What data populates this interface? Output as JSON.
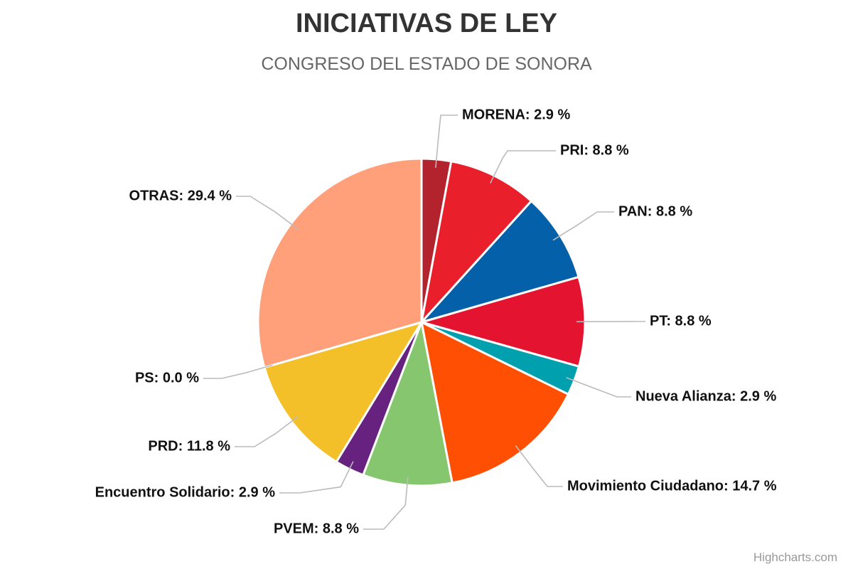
{
  "chart_data": {
    "type": "pie",
    "title": "INICIATIVAS DE LEY",
    "subtitle": "CONGRESO DEL ESTADO DE SONORA",
    "unit": "%",
    "series": [
      {
        "label": "MORENA",
        "value": 2.9,
        "color": "#B2232E"
      },
      {
        "label": "PRI",
        "value": 8.8,
        "color": "#E91F2B"
      },
      {
        "label": "PAN",
        "value": 8.8,
        "color": "#0460A8"
      },
      {
        "label": "PT",
        "value": 8.8,
        "color": "#E41330"
      },
      {
        "label": "Nueva Alianza",
        "value": 2.9,
        "color": "#00A0AF"
      },
      {
        "label": "Movimiento Ciudadano",
        "value": 14.7,
        "color": "#FF4F02"
      },
      {
        "label": "PVEM",
        "value": 8.8,
        "color": "#86C66E"
      },
      {
        "label": "Encuentro Solidario",
        "value": 2.9,
        "color": "#672280"
      },
      {
        "label": "PRD",
        "value": 11.8,
        "color": "#F4C02A"
      },
      {
        "label": "PS",
        "value": 0.0,
        "color": "#999999"
      },
      {
        "label": "OTRAS",
        "value": 29.4,
        "color": "#FFA07A"
      }
    ],
    "data_labels": [
      "MORENA: 2.9 %",
      "PRI: 8.8 %",
      "PAN: 8.8 %",
      "PT: 8.8 %",
      "Nueva Alianza: 2.9 %",
      "Movimiento Ciudadano: 14.7 %",
      "PVEM: 8.8 %",
      "Encuentro Solidario: 2.9 %",
      "PRD: 11.8 %",
      "PS: 0.0 %",
      "OTRAS: 29.4 %"
    ]
  },
  "credits": "Highcharts.com"
}
